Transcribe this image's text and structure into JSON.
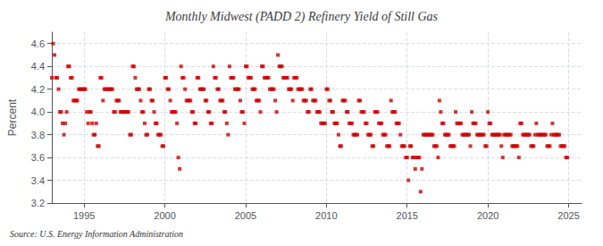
{
  "chart_data": {
    "type": "scatter",
    "title": "Monthly Midwest (PADD 2) Refinery Yield of Still Gas",
    "ylabel": "Percent",
    "annotation": "Source: U.S. Energy Information Administration",
    "color": "#cc0000",
    "marker": "square",
    "grid": true,
    "xlim": [
      1993.0,
      2025.8
    ],
    "ylim": [
      3.2,
      4.7
    ],
    "xticks": [
      1995,
      2000,
      2005,
      2010,
      2015,
      2020,
      2025
    ],
    "yticks": [
      3.2,
      3.4,
      3.6,
      3.8,
      {
        "value": 4.0,
        "label": "4.0"
      },
      4.2,
      4.4,
      4.6
    ],
    "x": [
      1993.0,
      1993.083,
      1993.167,
      1993.25,
      1993.333,
      1993.417,
      1993.5,
      1993.583,
      1993.667,
      1993.75,
      1993.833,
      1993.917,
      1994.0,
      1994.083,
      1994.167,
      1994.25,
      1994.333,
      1994.417,
      1994.5,
      1994.583,
      1994.667,
      1994.75,
      1994.833,
      1994.917,
      1995.0,
      1995.083,
      1995.167,
      1995.25,
      1995.333,
      1995.417,
      1995.5,
      1995.583,
      1995.667,
      1995.75,
      1995.833,
      1995.917,
      1996.0,
      1996.083,
      1996.167,
      1996.25,
      1996.333,
      1996.417,
      1996.5,
      1996.583,
      1996.667,
      1996.75,
      1996.833,
      1996.917,
      1997.0,
      1997.083,
      1997.167,
      1997.25,
      1997.333,
      1997.417,
      1997.5,
      1997.583,
      1997.667,
      1997.75,
      1997.833,
      1997.917,
      1998.0,
      1998.083,
      1998.167,
      1998.25,
      1998.333,
      1998.417,
      1998.5,
      1998.583,
      1998.667,
      1998.75,
      1998.833,
      1998.917,
      1999.0,
      1999.083,
      1999.167,
      1999.25,
      1999.333,
      1999.417,
      1999.5,
      1999.583,
      1999.667,
      1999.75,
      1999.833,
      1999.917,
      2000.0,
      2000.083,
      2000.167,
      2000.25,
      2000.333,
      2000.417,
      2000.5,
      2000.583,
      2000.667,
      2000.75,
      2000.833,
      2000.917,
      2001.0,
      2001.083,
      2001.167,
      2001.25,
      2001.333,
      2001.417,
      2001.5,
      2001.583,
      2001.667,
      2001.75,
      2001.833,
      2001.917,
      2002.0,
      2002.083,
      2002.167,
      2002.25,
      2002.333,
      2002.417,
      2002.5,
      2002.583,
      2002.667,
      2002.75,
      2002.833,
      2002.917,
      2003.0,
      2003.083,
      2003.167,
      2003.25,
      2003.333,
      2003.417,
      2003.5,
      2003.583,
      2003.667,
      2003.75,
      2003.833,
      2003.917,
      2004.0,
      2004.083,
      2004.167,
      2004.25,
      2004.333,
      2004.417,
      2004.5,
      2004.583,
      2004.667,
      2004.75,
      2004.833,
      2004.917,
      2005.0,
      2005.083,
      2005.167,
      2005.25,
      2005.333,
      2005.417,
      2005.5,
      2005.583,
      2005.667,
      2005.75,
      2005.833,
      2005.917,
      2006.0,
      2006.083,
      2006.167,
      2006.25,
      2006.333,
      2006.417,
      2006.5,
      2006.583,
      2006.667,
      2006.75,
      2006.833,
      2006.917,
      2007.0,
      2007.083,
      2007.167,
      2007.25,
      2007.333,
      2007.417,
      2007.5,
      2007.583,
      2007.667,
      2007.75,
      2007.833,
      2007.917,
      2008.0,
      2008.083,
      2008.167,
      2008.25,
      2008.333,
      2008.417,
      2008.5,
      2008.583,
      2008.667,
      2008.75,
      2008.833,
      2008.917,
      2009.0,
      2009.083,
      2009.167,
      2009.25,
      2009.333,
      2009.417,
      2009.5,
      2009.583,
      2009.667,
      2009.75,
      2009.833,
      2009.917,
      2010.0,
      2010.083,
      2010.167,
      2010.25,
      2010.333,
      2010.417,
      2010.5,
      2010.583,
      2010.667,
      2010.75,
      2010.833,
      2010.917,
      2011.0,
      2011.083,
      2011.167,
      2011.25,
      2011.333,
      2011.417,
      2011.5,
      2011.583,
      2011.667,
      2011.75,
      2011.833,
      2011.917,
      2012.0,
      2012.083,
      2012.167,
      2012.25,
      2012.333,
      2012.417,
      2012.5,
      2012.583,
      2012.667,
      2012.75,
      2012.833,
      2012.917,
      2013.0,
      2013.083,
      2013.167,
      2013.25,
      2013.333,
      2013.417,
      2013.5,
      2013.583,
      2013.667,
      2013.75,
      2013.833,
      2013.917,
      2014.0,
      2014.083,
      2014.167,
      2014.25,
      2014.333,
      2014.417,
      2014.5,
      2014.583,
      2014.667,
      2014.75,
      2014.833,
      2014.917,
      2015.0,
      2015.083,
      2015.167,
      2015.25,
      2015.333,
      2015.417,
      2015.5,
      2015.583,
      2015.667,
      2015.75,
      2015.833,
      2015.917,
      2016.0,
      2016.083,
      2016.167,
      2016.25,
      2016.333,
      2016.417,
      2016.5,
      2016.583,
      2016.667,
      2016.75,
      2016.833,
      2016.917,
      2017.0,
      2017.083,
      2017.167,
      2017.25,
      2017.333,
      2017.417,
      2017.5,
      2017.583,
      2017.667,
      2017.75,
      2017.833,
      2017.917,
      2018.0,
      2018.083,
      2018.167,
      2018.25,
      2018.333,
      2018.417,
      2018.5,
      2018.583,
      2018.667,
      2018.75,
      2018.833,
      2018.917,
      2019.0,
      2019.083,
      2019.167,
      2019.25,
      2019.333,
      2019.417,
      2019.5,
      2019.583,
      2019.667,
      2019.75,
      2019.833,
      2019.917,
      2020.0,
      2020.083,
      2020.167,
      2020.25,
      2020.333,
      2020.417,
      2020.5,
      2020.583,
      2020.667,
      2020.75,
      2020.833,
      2020.917,
      2021.0,
      2021.083,
      2021.167,
      2021.25,
      2021.333,
      2021.417,
      2021.5,
      2021.583,
      2021.667,
      2021.75,
      2021.833,
      2021.917,
      2022.0,
      2022.083,
      2022.167,
      2022.25,
      2022.333,
      2022.417,
      2022.5,
      2022.583,
      2022.667,
      2022.75,
      2022.833,
      2022.917,
      2023.0,
      2023.083,
      2023.167,
      2023.25,
      2023.333,
      2023.417,
      2023.5,
      2023.583,
      2023.667,
      2023.75,
      2023.833,
      2023.917,
      2024.0,
      2024.083,
      2024.167,
      2024.25,
      2024.333,
      2024.417,
      2024.5,
      2024.583,
      2024.667,
      2024.75,
      2024.833,
      2024.917
    ],
    "values": [
      4.3,
      4.6,
      4.5,
      4.3,
      4.3,
      4.2,
      4.0,
      4.0,
      3.9,
      3.8,
      3.9,
      4.0,
      4.4,
      4.4,
      4.3,
      4.3,
      4.1,
      4.1,
      4.1,
      4.1,
      4.2,
      4.2,
      4.2,
      4.2,
      4.2,
      4.2,
      4.0,
      3.9,
      4.0,
      4.0,
      3.9,
      3.8,
      3.8,
      3.9,
      3.7,
      3.7,
      4.3,
      4.3,
      4.1,
      4.2,
      4.2,
      4.2,
      4.2,
      4.2,
      4.2,
      4.2,
      4.0,
      4.0,
      4.1,
      4.1,
      4.1,
      4.0,
      4.0,
      4.0,
      4.0,
      4.0,
      4.0,
      4.0,
      3.8,
      3.8,
      4.4,
      4.4,
      4.3,
      4.2,
      4.2,
      4.2,
      4.1,
      4.0,
      4.0,
      3.9,
      3.8,
      3.8,
      4.2,
      4.2,
      4.1,
      4.1,
      4.0,
      3.9,
      3.9,
      3.8,
      3.8,
      3.8,
      3.7,
      3.7,
      4.3,
      4.3,
      4.2,
      4.2,
      4.1,
      4.0,
      4.0,
      4.0,
      4.0,
      3.9,
      3.6,
      3.5,
      4.4,
      4.3,
      4.3,
      4.2,
      4.1,
      4.1,
      4.1,
      4.1,
      4.0,
      4.0,
      3.9,
      3.9,
      4.3,
      4.3,
      4.2,
      4.2,
      4.2,
      4.2,
      4.1,
      4.1,
      4.0,
      4.0,
      3.9,
      3.9,
      4.4,
      4.3,
      4.3,
      4.2,
      4.2,
      4.1,
      4.1,
      4.1,
      4.0,
      4.0,
      3.9,
      3.8,
      4.4,
      4.3,
      4.3,
      4.3,
      4.2,
      4.2,
      4.2,
      4.2,
      4.1,
      4.0,
      4.0,
      3.9,
      4.4,
      4.4,
      4.3,
      4.3,
      4.3,
      4.2,
      4.2,
      4.2,
      4.1,
      4.1,
      4.1,
      4.0,
      4.4,
      4.4,
      4.3,
      4.3,
      4.3,
      4.3,
      4.2,
      4.2,
      4.2,
      4.2,
      4.1,
      4.0,
      4.5,
      4.4,
      4.4,
      4.4,
      4.3,
      4.3,
      4.3,
      4.3,
      4.2,
      4.2,
      4.2,
      4.1,
      4.3,
      4.3,
      4.3,
      4.2,
      4.2,
      4.2,
      4.2,
      4.1,
      4.1,
      4.1,
      4.0,
      4.0,
      4.2,
      4.2,
      4.1,
      4.1,
      4.1,
      4.0,
      4.0,
      4.0,
      3.9,
      3.9,
      3.9,
      3.9,
      4.2,
      4.2,
      4.1,
      4.1,
      4.0,
      4.0,
      3.9,
      3.9,
      3.9,
      3.8,
      3.7,
      3.7,
      4.1,
      4.1,
      4.1,
      4.0,
      4.0,
      3.9,
      3.9,
      3.9,
      3.8,
      3.8,
      3.8,
      3.8,
      4.1,
      4.1,
      4.0,
      4.0,
      4.0,
      3.9,
      3.9,
      3.8,
      3.8,
      3.8,
      3.7,
      3.7,
      4.0,
      4.0,
      4.0,
      3.9,
      3.9,
      3.9,
      3.8,
      3.8,
      3.8,
      3.7,
      3.7,
      3.7,
      4.1,
      4.0,
      4.0,
      4.0,
      3.9,
      3.9,
      3.9,
      3.8,
      3.7,
      3.7,
      3.7,
      3.6,
      3.6,
      3.4,
      3.7,
      3.7,
      3.6,
      3.6,
      3.5,
      3.6,
      3.6,
      3.6,
      3.3,
      3.5,
      3.8,
      3.8,
      3.8,
      3.8,
      3.8,
      3.8,
      3.8,
      3.8,
      3.7,
      3.7,
      3.7,
      3.6,
      4.1,
      4.0,
      3.9,
      3.9,
      3.8,
      3.8,
      3.8,
      3.8,
      3.7,
      3.7,
      3.7,
      3.7,
      4.0,
      3.9,
      3.9,
      3.9,
      3.9,
      3.8,
      3.8,
      3.8,
      3.8,
      3.8,
      3.8,
      3.7,
      4.0,
      3.9,
      3.9,
      3.9,
      3.8,
      3.8,
      3.8,
      3.8,
      3.8,
      3.8,
      3.7,
      3.7,
      4.0,
      3.9,
      3.9,
      3.8,
      3.8,
      3.8,
      3.8,
      3.8,
      3.8,
      3.8,
      3.7,
      3.6,
      3.8,
      3.8,
      3.8,
      3.8,
      3.8,
      3.8,
      3.7,
      3.7,
      3.7,
      3.7,
      3.7,
      3.6,
      3.9,
      3.9,
      3.8,
      3.8,
      3.8,
      3.8,
      3.8,
      3.8,
      3.7,
      3.7,
      3.7,
      3.8,
      3.9,
      3.8,
      3.8,
      3.8,
      3.8,
      3.8,
      3.8,
      3.8,
      3.7,
      3.7,
      3.7,
      3.8,
      3.9,
      3.8,
      3.8,
      3.8,
      3.8,
      3.8,
      3.7,
      3.7,
      3.7,
      3.7,
      3.6,
      3.6
    ]
  }
}
